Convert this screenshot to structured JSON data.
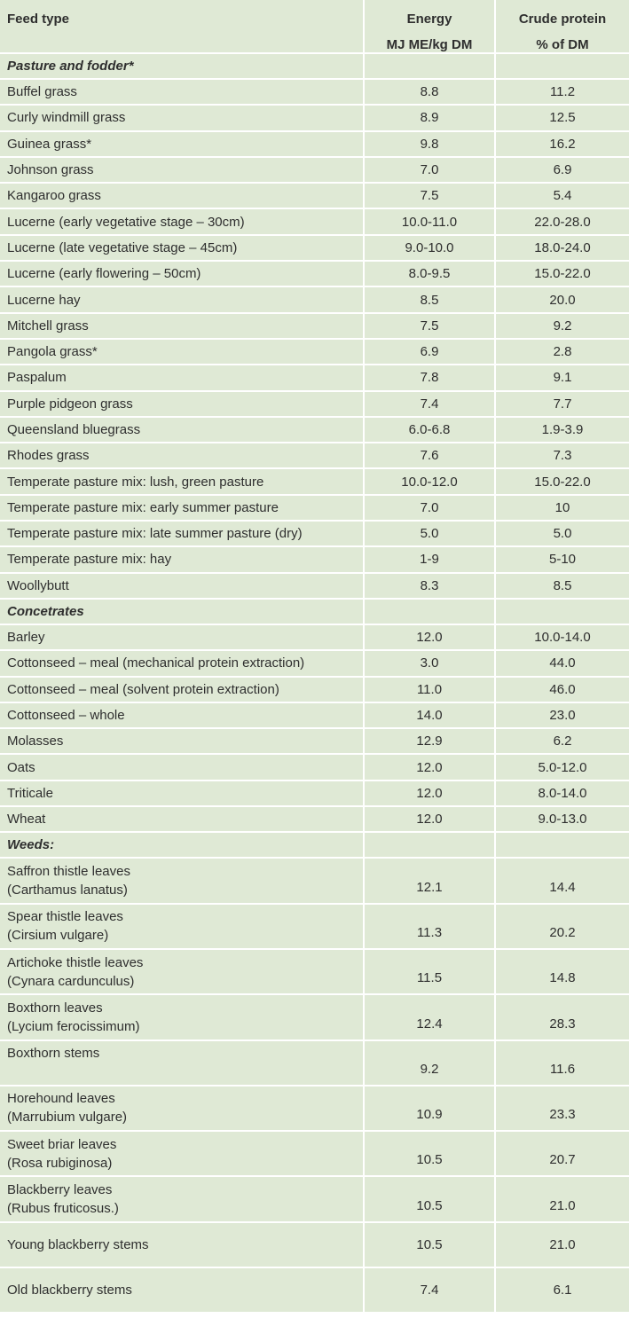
{
  "header": {
    "feed_type": "Feed type",
    "energy": "Energy",
    "energy_unit": "MJ ME/kg DM",
    "protein": "Crude protein",
    "protein_unit": "% of DM"
  },
  "colors": {
    "cell_bg": "#dfe9d5",
    "grid": "#ffffff",
    "text": "#2e2e2e"
  },
  "sections": [
    {
      "title": "Pasture and fodder*",
      "kind": "item",
      "rows": [
        {
          "name": "Buffel grass",
          "energy": "8.8",
          "protein": "11.2"
        },
        {
          "name": "Curly windmill grass",
          "energy": "8.9",
          "protein": "12.5"
        },
        {
          "name": "Guinea grass*",
          "energy": "9.8",
          "protein": "16.2"
        },
        {
          "name": "Johnson grass",
          "energy": "7.0",
          "protein": "6.9"
        },
        {
          "name": "Kangaroo grass",
          "energy": "7.5",
          "protein": "5.4"
        },
        {
          "name": "Lucerne (early vegetative stage – 30cm)",
          "energy": "10.0-11.0",
          "protein": "22.0-28.0"
        },
        {
          "name": "Lucerne (late vegetative stage – 45cm)",
          "energy": "9.0-10.0",
          "protein": "18.0-24.0"
        },
        {
          "name": "Lucerne (early flowering – 50cm)",
          "energy": "8.0-9.5",
          "protein": "15.0-22.0"
        },
        {
          "name": "Lucerne hay",
          "energy": "8.5",
          "protein": "20.0"
        },
        {
          "name": "Mitchell grass",
          "energy": "7.5",
          "protein": "9.2"
        },
        {
          "name": "Pangola grass*",
          "energy": "6.9",
          "protein": "2.8"
        },
        {
          "name": "Paspalum",
          "energy": "7.8",
          "protein": "9.1"
        },
        {
          "name": "Purple pidgeon grass",
          "energy": "7.4",
          "protein": "7.7"
        },
        {
          "name": "Queensland bluegrass",
          "energy": "6.0-6.8",
          "protein": "1.9-3.9"
        },
        {
          "name": "Rhodes grass",
          "energy": "7.6",
          "protein": "7.3"
        },
        {
          "name": "Temperate pasture mix: lush, green pasture",
          "energy": "10.0-12.0",
          "protein": "15.0-22.0"
        },
        {
          "name": "Temperate pasture mix: early summer pasture",
          "energy": "7.0",
          "protein": "10"
        },
        {
          "name": "Temperate pasture mix: late summer pasture (dry)",
          "energy": "5.0",
          "protein": "5.0"
        },
        {
          "name": "Temperate pasture mix: hay",
          "energy": "1-9",
          "protein": "5-10"
        },
        {
          "name": "Woollybutt",
          "energy": "8.3",
          "protein": "8.5"
        }
      ]
    },
    {
      "title": "Concetrates",
      "kind": "item",
      "rows": [
        {
          "name": "Barley",
          "energy": "12.0",
          "protein": "10.0-14.0"
        },
        {
          "name": "Cottonseed – meal (mechanical protein extraction)",
          "energy": "3.0",
          "protein": "44.0"
        },
        {
          "name": "Cottonseed – meal (solvent protein extraction)",
          "energy": "11.0",
          "protein": "46.0"
        },
        {
          "name": "Cottonseed – whole",
          "energy": "14.0",
          "protein": "23.0"
        },
        {
          "name": "Molasses",
          "energy": "12.9",
          "protein": "6.2"
        },
        {
          "name": "Oats",
          "energy": "12.0",
          "protein": "5.0-12.0"
        },
        {
          "name": "Triticale",
          "energy": "12.0",
          "protein": "8.0-14.0"
        },
        {
          "name": "Wheat",
          "energy": "12.0",
          "protein": "9.0-13.0"
        }
      ]
    },
    {
      "title": "Weeds:",
      "kind": "weed",
      "rows": [
        {
          "name": "Saffron thistle leaves",
          "latin": "(Carthamus lanatus)",
          "energy": "12.1",
          "protein": "14.4"
        },
        {
          "name": "Spear thistle leaves",
          "latin": "(Cirsium vulgare)",
          "energy": "11.3",
          "protein": "20.2"
        },
        {
          "name": "Artichoke thistle leaves",
          "latin": "(Cynara cardunculus)",
          "energy": "11.5",
          "protein": "14.8"
        },
        {
          "name": "Boxthorn leaves",
          "latin": "(Lycium ferocissimum)",
          "energy": "12.4",
          "protein": "28.3"
        },
        {
          "name": "Boxthorn stems",
          "latin": "",
          "energy": "9.2",
          "protein": "11.6"
        },
        {
          "name": "Horehound leaves",
          "latin": "(Marrubium vulgare)",
          "energy": "10.9",
          "protein": "23.3"
        },
        {
          "name": "Sweet briar leaves",
          "latin": "(Rosa rubiginosa)",
          "energy": "10.5",
          "protein": "20.7"
        },
        {
          "name": "Blackberry leaves",
          "latin": "(Rubus fruticosus.)",
          "energy": "10.5",
          "protein": "21.0"
        },
        {
          "name": "Young blackberry stems",
          "energy": "10.5",
          "protein": "21.0"
        },
        {
          "name": "Old blackberry stems",
          "energy": "7.4",
          "protein": "6.1"
        }
      ]
    }
  ]
}
